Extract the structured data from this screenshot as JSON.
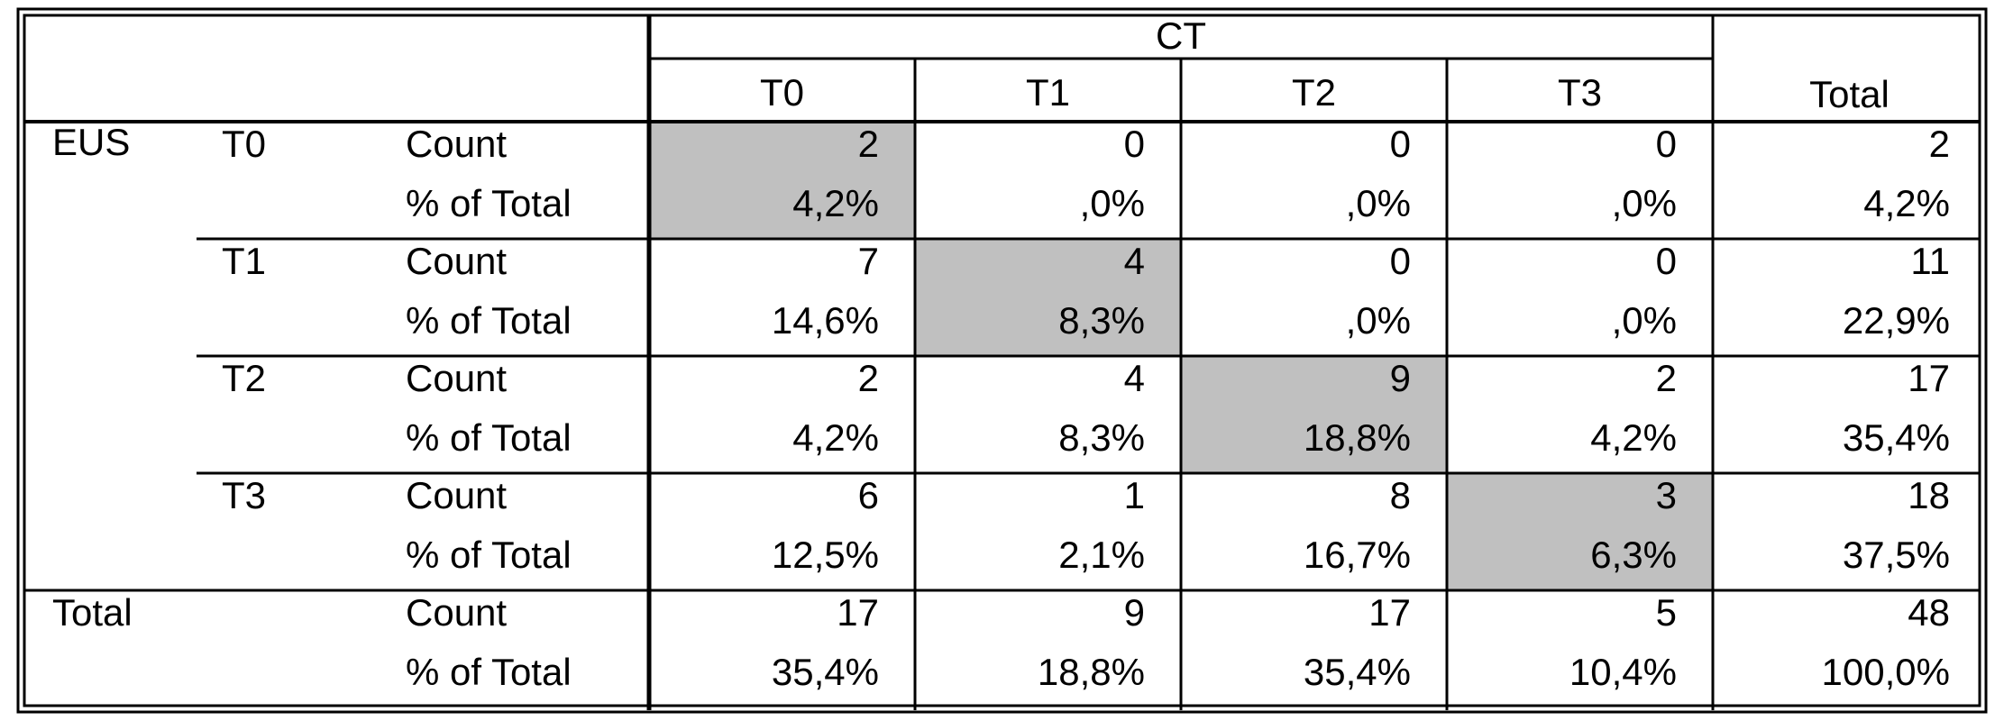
{
  "chart_data": {
    "type": "table",
    "col_group_label": "CT",
    "col_labels": [
      "T0",
      "T1",
      "T2",
      "T3"
    ],
    "total_label": "Total",
    "row_group_label": "EUS",
    "stat_labels": [
      "Count",
      "% of Total"
    ],
    "rows": [
      {
        "label": "T0",
        "count": [
          "2",
          "0",
          "0",
          "0",
          "2"
        ],
        "pct": [
          "4,2%",
          ",0%",
          ",0%",
          ",0%",
          "4,2%"
        ]
      },
      {
        "label": "T1",
        "count": [
          "7",
          "4",
          "0",
          "0",
          "11"
        ],
        "pct": [
          "14,6%",
          "8,3%",
          ",0%",
          ",0%",
          "22,9%"
        ]
      },
      {
        "label": "T2",
        "count": [
          "2",
          "4",
          "9",
          "2",
          "17"
        ],
        "pct": [
          "4,2%",
          "8,3%",
          "18,8%",
          "4,2%",
          "35,4%"
        ]
      },
      {
        "label": "T3",
        "count": [
          "6",
          "1",
          "8",
          "3",
          "18"
        ],
        "pct": [
          "12,5%",
          "2,1%",
          "16,7%",
          "6,3%",
          "37,5%"
        ]
      }
    ],
    "total_row": {
      "label": "Total",
      "count": [
        "17",
        "9",
        "17",
        "5",
        "48"
      ],
      "pct": [
        "35,4%",
        "18,8%",
        "35,4%",
        "10,4%",
        "100,0%"
      ]
    },
    "highlight_diagonal": true
  },
  "colors": {
    "highlight": "#c0c0c0",
    "border": "#000000",
    "background": "#ffffff"
  }
}
